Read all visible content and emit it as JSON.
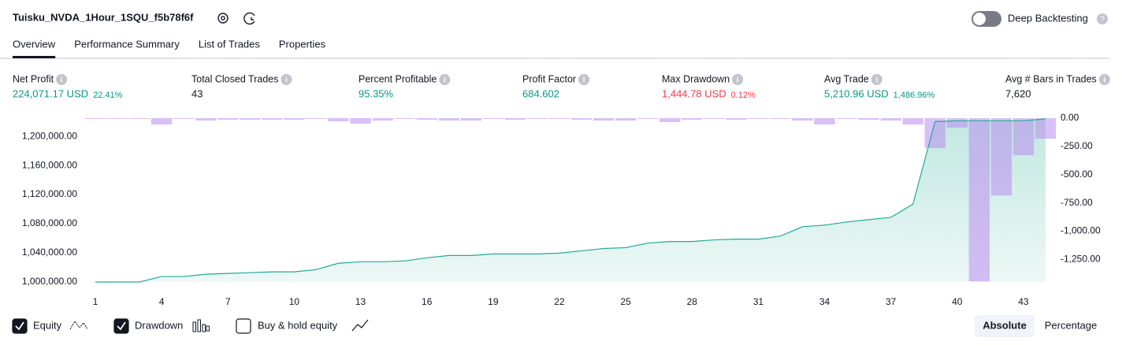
{
  "header": {
    "title": "Tuisku_NVDA_1Hour_1SQU_f5b78f6f",
    "toggle_label": "Deep Backtesting"
  },
  "tabs": [
    "Overview",
    "Performance Summary",
    "List of Trades",
    "Properties"
  ],
  "metrics": [
    {
      "label": "Net Profit",
      "value": "224,071.17 USD",
      "change": "22.41%",
      "color": "#089981"
    },
    {
      "label": "Total Closed Trades",
      "value": "43",
      "color": "#131722"
    },
    {
      "label": "Percent Profitable",
      "value": "95.35%",
      "color": "#089981"
    },
    {
      "label": "Profit Factor",
      "value": "684.602",
      "color": "#089981"
    },
    {
      "label": "Max Drawdown",
      "value": "1,444.78 USD",
      "change": "0.12%",
      "color": "#f23645"
    },
    {
      "label": "Avg Trade",
      "value": "5,210.96 USD",
      "change": "1,486.96%",
      "color": "#089981"
    },
    {
      "label": "Avg # Bars in Trades",
      "value": "7,620",
      "color": "#131722"
    }
  ],
  "chart_data": {
    "type": "combo",
    "x": [
      1,
      2,
      3,
      4,
      5,
      6,
      7,
      8,
      9,
      10,
      11,
      12,
      13,
      14,
      15,
      16,
      17,
      18,
      19,
      20,
      21,
      22,
      23,
      24,
      25,
      26,
      27,
      28,
      29,
      30,
      31,
      32,
      33,
      34,
      35,
      36,
      37,
      38,
      39,
      40,
      41,
      42,
      43,
      44
    ],
    "series": [
      {
        "name": "Equity",
        "type": "area",
        "color": "#22ab94",
        "values": [
          1000000,
          1000000,
          1000000,
          1007500,
          1007500,
          1010700,
          1011800,
          1012800,
          1013900,
          1013900,
          1017100,
          1025700,
          1027800,
          1027800,
          1028900,
          1033200,
          1036400,
          1036400,
          1038500,
          1038500,
          1038500,
          1039600,
          1042800,
          1046000,
          1047100,
          1053500,
          1055600,
          1055600,
          1057800,
          1058800,
          1058800,
          1063100,
          1075900,
          1078100,
          1082400,
          1085600,
          1088800,
          1107000,
          1220300,
          1221400,
          1221400,
          1221400,
          1221400,
          1224071.17
        ]
      },
      {
        "name": "Drawdown",
        "type": "bar",
        "axis": "y2",
        "color": "#b98cf0",
        "values": [
          -3,
          -3,
          -3,
          -56,
          -5,
          -21,
          -14,
          -14,
          -14,
          -14,
          -5,
          -28,
          -49,
          -21,
          -5,
          -14,
          -21,
          -21,
          -5,
          -14,
          -5,
          -5,
          -14,
          -21,
          -21,
          -5,
          -35,
          -14,
          -5,
          -14,
          -5,
          -5,
          -21,
          -56,
          -5,
          -14,
          -21,
          -56,
          -265,
          -84,
          -1444.78,
          -684,
          -328,
          -182
        ]
      }
    ],
    "xlim": [
      0.5,
      44.5
    ],
    "xticks": [
      1,
      4,
      7,
      10,
      13,
      16,
      19,
      22,
      25,
      28,
      31,
      34,
      37,
      40,
      43
    ],
    "ylim": [
      1000000,
      1225000
    ],
    "yticks": [
      {
        "value": 1000000,
        "label": "1,000,000.00"
      },
      {
        "value": 1040000,
        "label": "1,040,000.00"
      },
      {
        "value": 1080000,
        "label": "1,080,000.00"
      },
      {
        "value": 1120000,
        "label": "1,120,000.00"
      },
      {
        "value": 1160000,
        "label": "1,160,000.00"
      },
      {
        "value": 1200000,
        "label": "1,200,000.00"
      }
    ],
    "y2lim": [
      0,
      -1450
    ],
    "y2ticks": [
      {
        "value": 0,
        "label": "0.00"
      },
      {
        "value": -250,
        "label": "-250.00"
      },
      {
        "value": -500,
        "label": "-500.00"
      },
      {
        "value": -750,
        "label": "-750.00"
      },
      {
        "value": -1000,
        "label": "-1,000.00"
      },
      {
        "value": -1250,
        "label": "-1,250.00"
      }
    ]
  },
  "controls": {
    "buy_hold": "Buy & hold equity",
    "modes": [
      "Absolute",
      "Percentage"
    ]
  }
}
